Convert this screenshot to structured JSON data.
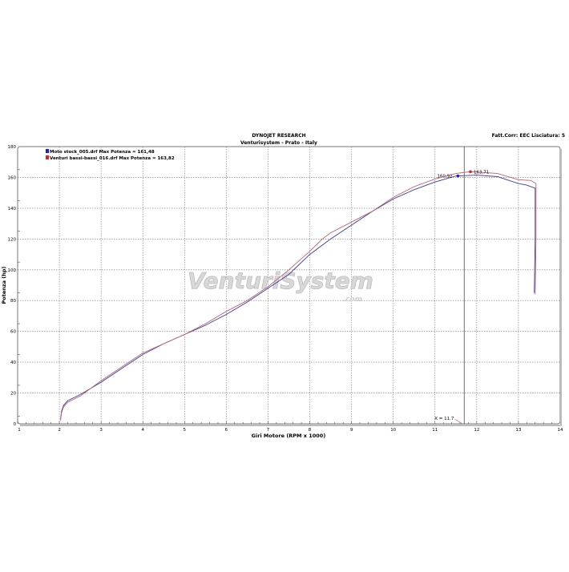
{
  "chart_data": {
    "type": "line",
    "title": "DYNOJET RESEARCH",
    "subtitle": "Venturisystem - Prato - Italy",
    "header_right": "Fatt.Corr: EEC  Lisciatura: 5",
    "xlabel": "Giri Motore (RPM x 1000)",
    "ylabel": "Potenza (hp)",
    "xlim": [
      1,
      14
    ],
    "ylim": [
      0,
      180
    ],
    "xticks": [
      "1",
      "2",
      "3",
      "4",
      "5",
      "6",
      "7",
      "8",
      "9",
      "10",
      "11",
      "12",
      "13",
      "14"
    ],
    "yticks": [
      "0",
      "20",
      "40",
      "60",
      "80",
      "100",
      "120",
      "140",
      "160",
      "180"
    ],
    "grid": true,
    "legend_position": "top-left",
    "watermark": "VenturiSystem.com",
    "cursor": {
      "x": 11.7,
      "label": "X = 11,7"
    },
    "series": [
      {
        "name": "Moto stock_005.drf Max Potenza = 161,48",
        "color": "#3a3aa0",
        "marker_color": "#1a1ae0",
        "marker": {
          "x": 11.55,
          "y": 160.92,
          "label": "160,92"
        },
        "x": [
          2.03,
          2.05,
          2.1,
          2.2,
          2.5,
          3,
          3.5,
          4,
          4.5,
          5,
          5.5,
          6,
          6.5,
          7,
          7.5,
          8,
          8.5,
          9,
          9.5,
          10,
          10.5,
          11,
          11.5,
          12,
          12.5,
          13,
          13.2,
          13.4,
          13.4,
          13.38
        ],
        "y": [
          3,
          8,
          12,
          15,
          19,
          27,
          36,
          45,
          52,
          58,
          64,
          71,
          79,
          88,
          97,
          110,
          120,
          129,
          138,
          146,
          152,
          157,
          160.9,
          161.5,
          160.5,
          156,
          155,
          153,
          120,
          85
        ]
      },
      {
        "name": "Venturi bassi-bassi_016.drf Max Potenza = 163,82",
        "color": "#c06070",
        "marker_color": "#e02020",
        "marker": {
          "x": 11.85,
          "y": 163.71,
          "label": "163,71"
        },
        "x": [
          2.03,
          2.05,
          2.1,
          2.2,
          2.5,
          3,
          3.5,
          4,
          4.5,
          5,
          5.5,
          6,
          6.5,
          7,
          7.5,
          8,
          8.3,
          8.5,
          9,
          9.5,
          10,
          10.5,
          11,
          11.5,
          11.85,
          12,
          12.5,
          13,
          13.3,
          13.42,
          13.42,
          13.4
        ],
        "y": [
          2,
          7,
          11,
          14,
          18,
          28,
          37,
          46,
          52,
          58,
          65,
          73,
          80,
          89,
          100,
          112,
          120,
          124,
          131,
          138,
          147,
          154,
          159,
          162.5,
          163.7,
          163.5,
          162.5,
          158.5,
          158,
          156,
          120,
          84
        ]
      }
    ]
  }
}
